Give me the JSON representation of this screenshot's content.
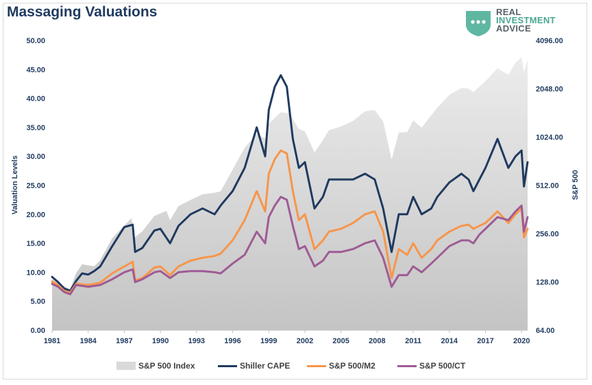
{
  "chart_data": {
    "type": "line",
    "title": "Massaging Valuations",
    "ylabel_left": "Valuation Levels",
    "ylabel_right": "S&P 500",
    "ylim_left": [
      0,
      50
    ],
    "ylim_right": [
      64,
      4096
    ],
    "right_axis_scale": "log2",
    "x_range": [
      1981,
      2020.5
    ],
    "x_ticks": [
      "1981",
      "1984",
      "1987",
      "1990",
      "1993",
      "1996",
      "1999",
      "2002",
      "2005",
      "2008",
      "2011",
      "2014",
      "2017",
      "2020"
    ],
    "y_ticks_left": [
      "0.00",
      "5.00",
      "10.00",
      "15.00",
      "20.00",
      "25.00",
      "30.00",
      "35.00",
      "40.00",
      "45.00",
      "50.00"
    ],
    "y_ticks_right": [
      "64.00",
      "128.00",
      "256.00",
      "512.00",
      "1024.00",
      "2048.00",
      "4096.00"
    ],
    "grid": false,
    "legend_position": "bottom",
    "colors": {
      "sp500": "#d9d9d9",
      "cape": "#1f3a5f",
      "m2": "#f7954a",
      "ct": "#9e5b94"
    },
    "series": [
      {
        "name": "S&P 500 Index",
        "axis": "right",
        "style": "area",
        "x": [
          1981.0,
          1981.6,
          1982.5,
          1983.0,
          1983.5,
          1984.5,
          1985.0,
          1986.0,
          1987.6,
          1987.8,
          1988.5,
          1989.5,
          1990.5,
          1990.8,
          1991.5,
          1992.5,
          1993.5,
          1994.5,
          1995.0,
          1996.0,
          1997.0,
          1998.0,
          1998.7,
          1999.0,
          2000.0,
          2000.7,
          2001.5,
          2002.0,
          2002.8,
          2003.5,
          2004.0,
          2005.0,
          2006.0,
          2007.0,
          2007.8,
          2008.5,
          2009.2,
          2009.8,
          2010.5,
          2011.0,
          2011.7,
          2012.5,
          2013.0,
          2014.0,
          2015.0,
          2015.6,
          2016.0,
          2016.5,
          2017.0,
          2018.0,
          2018.9,
          2019.5,
          2020.0,
          2020.2,
          2020.5
        ],
        "values": [
          133,
          125,
          115,
          145,
          165,
          160,
          175,
          240,
          320,
          240,
          265,
          330,
          355,
          310,
          380,
          415,
          450,
          460,
          470,
          640,
          880,
          1070,
          1000,
          1240,
          1460,
          1440,
          1150,
          1110,
          820,
          980,
          1130,
          1190,
          1290,
          1480,
          1510,
          1280,
          740,
          1090,
          1100,
          1300,
          1170,
          1400,
          1560,
          1880,
          2070,
          2050,
          1950,
          2110,
          2280,
          2750,
          2500,
          2980,
          3230,
          2600,
          3100
        ]
      },
      {
        "name": "Shiller CAPE",
        "axis": "left",
        "style": "line",
        "x": [
          1981.0,
          1981.5,
          1982.0,
          1982.5,
          1983.0,
          1983.5,
          1984.0,
          1984.5,
          1985.0,
          1986.0,
          1987.0,
          1987.7,
          1987.9,
          1988.5,
          1989.5,
          1990.0,
          1990.8,
          1991.5,
          1992.5,
          1993.5,
          1994.5,
          1995.0,
          1996.0,
          1997.0,
          1998.0,
          1998.7,
          1999.0,
          1999.5,
          2000.0,
          2000.5,
          2001.0,
          2001.5,
          2002.0,
          2002.8,
          2003.5,
          2004.0,
          2005.0,
          2006.0,
          2007.0,
          2007.8,
          2008.5,
          2009.2,
          2009.8,
          2010.5,
          2011.0,
          2011.7,
          2012.5,
          2013.0,
          2014.0,
          2015.0,
          2015.6,
          2016.0,
          2016.5,
          2017.0,
          2018.0,
          2018.9,
          2019.5,
          2020.0,
          2020.2,
          2020.5
        ],
        "values": [
          9.2,
          8.3,
          7.2,
          6.8,
          8.5,
          9.8,
          9.6,
          10.2,
          11.0,
          14.5,
          17.8,
          18.2,
          13.5,
          14.2,
          17.2,
          17.5,
          15.0,
          18.0,
          20.0,
          21.0,
          20.0,
          21.5,
          24.0,
          28.0,
          35.0,
          30.0,
          38.0,
          42.0,
          44.0,
          42.0,
          33.0,
          28.0,
          29.0,
          21.0,
          23.0,
          26.0,
          26.0,
          26.0,
          27.0,
          26.0,
          21.0,
          13.5,
          20.0,
          20.0,
          23.0,
          20.0,
          21.0,
          23.0,
          25.5,
          27.0,
          26.0,
          24.0,
          26.0,
          28.0,
          33.0,
          28.0,
          30.0,
          31.0,
          24.8,
          29.0
        ]
      },
      {
        "name": "S&P 500/M2",
        "axis": "left",
        "style": "line",
        "x": [
          1981.0,
          1981.5,
          1982.0,
          1982.5,
          1983.0,
          1984.0,
          1985.0,
          1986.0,
          1987.0,
          1987.7,
          1987.9,
          1988.5,
          1989.5,
          1990.0,
          1990.8,
          1991.5,
          1992.5,
          1993.5,
          1994.5,
          1995.0,
          1996.0,
          1997.0,
          1998.0,
          1998.7,
          1999.0,
          1999.5,
          2000.0,
          2000.5,
          2001.0,
          2001.5,
          2002.0,
          2002.8,
          2003.5,
          2004.0,
          2005.0,
          2006.0,
          2007.0,
          2007.8,
          2008.5,
          2009.2,
          2009.8,
          2010.5,
          2011.0,
          2011.7,
          2012.5,
          2013.0,
          2014.0,
          2015.0,
          2015.6,
          2016.0,
          2016.5,
          2017.0,
          2018.0,
          2018.9,
          2019.5,
          2020.0,
          2020.2,
          2020.5
        ],
        "values": [
          8.4,
          7.8,
          6.8,
          6.5,
          8.0,
          7.8,
          8.2,
          9.8,
          11.0,
          11.8,
          8.6,
          9.0,
          10.8,
          11.0,
          9.5,
          11.0,
          12.0,
          12.5,
          12.8,
          13.2,
          15.5,
          19.0,
          24.0,
          20.5,
          27.0,
          29.5,
          31.0,
          30.5,
          24.0,
          19.0,
          20.0,
          14.0,
          15.5,
          17.0,
          17.5,
          18.5,
          20.0,
          20.5,
          17.0,
          9.0,
          14.0,
          13.0,
          15.0,
          12.5,
          14.0,
          15.5,
          17.0,
          18.0,
          18.2,
          17.5,
          18.0,
          18.5,
          20.5,
          18.5,
          20.0,
          21.0,
          16.0,
          17.5
        ]
      },
      {
        "name": "S&P 500/CT",
        "axis": "left",
        "style": "line",
        "x": [
          1981.0,
          1981.5,
          1982.0,
          1982.5,
          1983.0,
          1984.0,
          1985.0,
          1986.0,
          1987.0,
          1987.7,
          1987.9,
          1988.5,
          1989.5,
          1990.0,
          1990.8,
          1991.5,
          1992.5,
          1993.5,
          1994.5,
          1995.0,
          1996.0,
          1997.0,
          1998.0,
          1998.7,
          1999.0,
          1999.5,
          2000.0,
          2000.5,
          2001.0,
          2001.5,
          2002.0,
          2002.8,
          2003.5,
          2004.0,
          2005.0,
          2006.0,
          2007.0,
          2007.8,
          2008.5,
          2009.2,
          2009.8,
          2010.5,
          2011.0,
          2011.7,
          2012.5,
          2013.0,
          2014.0,
          2015.0,
          2015.6,
          2016.0,
          2016.5,
          2017.0,
          2018.0,
          2018.9,
          2019.5,
          2020.0,
          2020.2,
          2020.5
        ],
        "values": [
          8.0,
          7.5,
          6.6,
          6.2,
          7.8,
          7.5,
          7.8,
          8.8,
          10.0,
          10.5,
          8.3,
          8.8,
          10.0,
          10.2,
          9.0,
          10.0,
          10.2,
          10.2,
          10.0,
          9.8,
          11.5,
          13.0,
          17.0,
          15.0,
          19.5,
          21.5,
          23.0,
          22.5,
          18.0,
          14.0,
          14.5,
          11.0,
          12.0,
          13.5,
          13.5,
          14.0,
          15.0,
          15.5,
          12.5,
          7.5,
          9.5,
          9.5,
          11.0,
          10.0,
          11.5,
          12.5,
          14.5,
          15.5,
          15.5,
          15.0,
          16.5,
          17.5,
          19.5,
          19.0,
          20.5,
          21.5,
          17.0,
          19.5
        ]
      }
    ]
  },
  "logo": {
    "line1": "REAL",
    "line2": "INVESTMENT",
    "line3": "ADVICE"
  }
}
